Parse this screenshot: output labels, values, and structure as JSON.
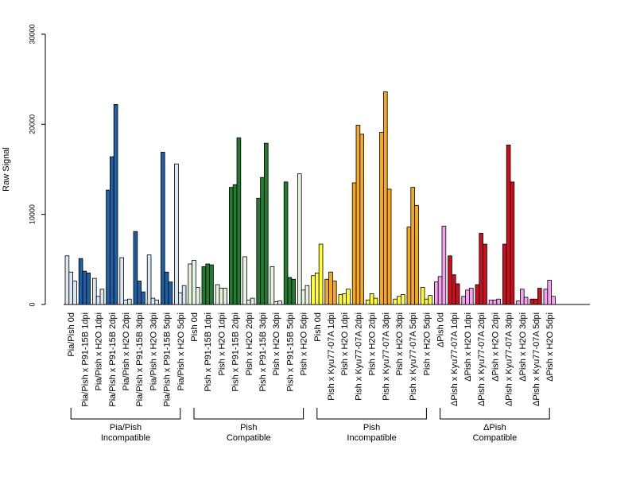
{
  "chart_data": {
    "type": "bar",
    "title": "",
    "ylabel": "Raw Signal",
    "xlabel": "",
    "ylim": [
      0,
      30000
    ],
    "yticks": [
      "0",
      "10000",
      "20000",
      "30000"
    ],
    "grid": false,
    "legend": "none",
    "categories": [
      {
        "label": "Pia/Pish 0d",
        "color": "#dbe7f3",
        "values": [
          5400,
          3600,
          2600
        ]
      },
      {
        "label": "Pia/Pish x P91-15B 1dpi",
        "color": "#1f5fa6",
        "values": [
          5100,
          3700,
          3500
        ]
      },
      {
        "label": "Pia/Pish x H2O 1dpi",
        "color": "#dbe7f3",
        "values": [
          2900,
          900,
          1700
        ]
      },
      {
        "label": "Pia/Pish x P91-15B 2dpi",
        "color": "#1f5fa6",
        "values": [
          12700,
          16400,
          22200
        ]
      },
      {
        "label": "Pia/Pish x H2O 2dpi",
        "color": "#dbe7f3",
        "values": [
          5200,
          500,
          600
        ]
      },
      {
        "label": "Pia/Pish x P91-15B 3dpi",
        "color": "#1f5fa6",
        "values": [
          8100,
          2600,
          1400
        ]
      },
      {
        "label": "Pia/Pish x H2O 3dpi",
        "color": "#dbe7f3",
        "values": [
          5500,
          700,
          500
        ]
      },
      {
        "label": "Pia/Pish x P91-15B 5dpi",
        "color": "#1f5fa6",
        "values": [
          16900,
          3600,
          2500
        ]
      },
      {
        "label": "Pia/Pish x H2O 5dpi",
        "color": "#dbe7f3",
        "values": [
          15600,
          1300,
          2100
        ]
      },
      {
        "label": "Pish 0d",
        "color": "#e5f3e0",
        "values": [
          4500,
          4900,
          1900
        ]
      },
      {
        "label": "Pish x P91-15B 1dpi",
        "color": "#237a30",
        "values": [
          4200,
          4500,
          4400
        ]
      },
      {
        "label": "Pish x H2O 1dpi",
        "color": "#e5f3e0",
        "values": [
          2200,
          1800,
          1800
        ]
      },
      {
        "label": "Pish x P91-15B 2dpi",
        "color": "#237a30",
        "values": [
          13000,
          13300,
          18500
        ]
      },
      {
        "label": "Pish x H2O 2dpi",
        "color": "#e5f3e0",
        "values": [
          5300,
          500,
          700
        ]
      },
      {
        "label": "Pish x P91-15B 3dpi",
        "color": "#237a30",
        "values": [
          11800,
          14100,
          17900
        ]
      },
      {
        "label": "Pish x H2O 3dpi",
        "color": "#e5f3e0",
        "values": [
          4200,
          300,
          400
        ]
      },
      {
        "label": "Pish x P91-15B 5dpi",
        "color": "#237a30",
        "values": [
          13600,
          3000,
          2800
        ]
      },
      {
        "label": "Pish x H2O 5dpi",
        "color": "#e5f3e0",
        "values": [
          14500,
          1600,
          2100
        ]
      },
      {
        "label": "Pish 0d",
        "color": "#ffff33",
        "values": [
          3200,
          3500,
          6700
        ]
      },
      {
        "label": "Pish x Kyu77-07A 1dpi",
        "color": "#f5a822",
        "values": [
          2800,
          3600,
          2600
        ]
      },
      {
        "label": "Pish x H2O 1dpi",
        "color": "#ffff33",
        "values": [
          1100,
          1200,
          1700
        ]
      },
      {
        "label": "Pish x Kyu77-07A 2dpi",
        "color": "#f5a822",
        "values": [
          13500,
          19900,
          18900
        ]
      },
      {
        "label": "Pish x H2O 2dpi",
        "color": "#ffff33",
        "values": [
          500,
          1200,
          700
        ]
      },
      {
        "label": "Pish x Kyu77-07A 3dpi",
        "color": "#f5a822",
        "values": [
          19100,
          23600,
          12800
        ]
      },
      {
        "label": "Pish x H2O 3dpi",
        "color": "#ffff33",
        "values": [
          600,
          900,
          1100
        ]
      },
      {
        "label": "Pish x Kyu77-07A 5dpi",
        "color": "#f5a822",
        "values": [
          8600,
          13000,
          11000
        ]
      },
      {
        "label": "Pish x H2O 5dpi",
        "color": "#ffff33",
        "values": [
          1900,
          600,
          1000
        ]
      },
      {
        "label": "ΔPish 0d",
        "color": "#f5a3ee",
        "values": [
          2500,
          3100,
          8700
        ]
      },
      {
        "label": "ΔPish x Kyu77-07A 1dpi",
        "color": "#cc0e1d",
        "values": [
          5400,
          3300,
          2300
        ]
      },
      {
        "label": "ΔPish x H2O 1dpi",
        "color": "#f5a3ee",
        "values": [
          900,
          1600,
          1800
        ]
      },
      {
        "label": "ΔPish x Kyu77-07A 2dpi",
        "color": "#cc0e1d",
        "values": [
          2200,
          7900,
          6700
        ]
      },
      {
        "label": "ΔPish x H2O 2dpi",
        "color": "#f5a3ee",
        "values": [
          500,
          500,
          600
        ]
      },
      {
        "label": "ΔPish x Kyu77-07A 3dpi",
        "color": "#cc0e1d",
        "values": [
          6700,
          17700,
          13600
        ]
      },
      {
        "label": "ΔPish x H2O 3dpi",
        "color": "#f5a3ee",
        "values": [
          400,
          1700,
          800
        ]
      },
      {
        "label": "ΔPish x Kyu77-07A 5dpi",
        "color": "#cc0e1d",
        "values": [
          600,
          600,
          1800
        ]
      },
      {
        "label": "ΔPish x H2O 5dpi",
        "color": "#f5a3ee",
        "values": [
          1700,
          2700,
          900
        ]
      }
    ],
    "groups": [
      {
        "line1": "Pia/Pish",
        "line2": "Incompatible",
        "first": 0,
        "last": 8
      },
      {
        "line1": "Pish",
        "line2": "Compatible",
        "first": 9,
        "last": 17
      },
      {
        "line1": "Pish",
        "line2": "Incompatible",
        "first": 18,
        "last": 26
      },
      {
        "line1": "ΔPish",
        "line2": "Compatible",
        "first": 27,
        "last": 35
      }
    ]
  }
}
